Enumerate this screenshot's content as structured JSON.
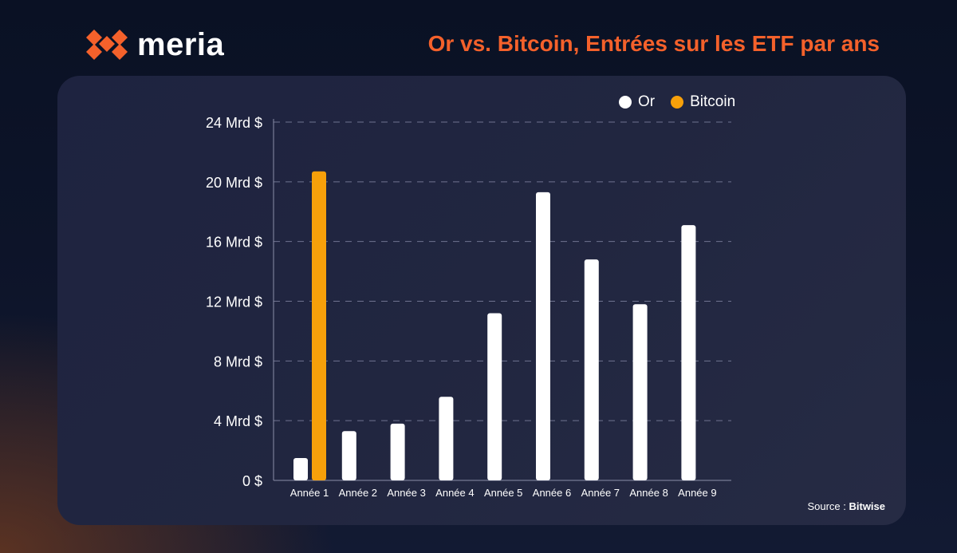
{
  "brand": {
    "name": "meria",
    "logo_icon": "meria-logo-icon",
    "accent": "#f4612b"
  },
  "headline": "Or vs. Bitcoin, Entrées sur les ETF par ans",
  "source": {
    "label": "Source : ",
    "value": "Bitwise"
  },
  "chart_data": {
    "type": "bar",
    "categories": [
      "Année 1",
      "Année 2",
      "Année 3",
      "Année 4",
      "Année 5",
      "Année 6",
      "Année 7",
      "Année 8",
      "Année 9"
    ],
    "series": [
      {
        "name": "Or",
        "color": "#ffffff",
        "values": [
          1.5,
          3.3,
          3.8,
          5.6,
          11.2,
          19.3,
          14.8,
          11.8,
          17.1
        ]
      },
      {
        "name": "Bitcoin",
        "color": "#f7a00a",
        "values": [
          20.7,
          null,
          null,
          null,
          null,
          null,
          null,
          null,
          null
        ]
      }
    ],
    "ylim": [
      0,
      24
    ],
    "yticks": [
      0,
      4,
      8,
      12,
      16,
      20,
      24
    ],
    "ytick_labels": [
      "0 $",
      "4 Mrd $",
      "8 Mrd $",
      "12 Mrd $",
      "16 Mrd $",
      "20 Mrd $",
      "24 Mrd $"
    ],
    "grid": true,
    "legend": "top-right",
    "title": "",
    "xlabel": "",
    "ylabel": ""
  }
}
